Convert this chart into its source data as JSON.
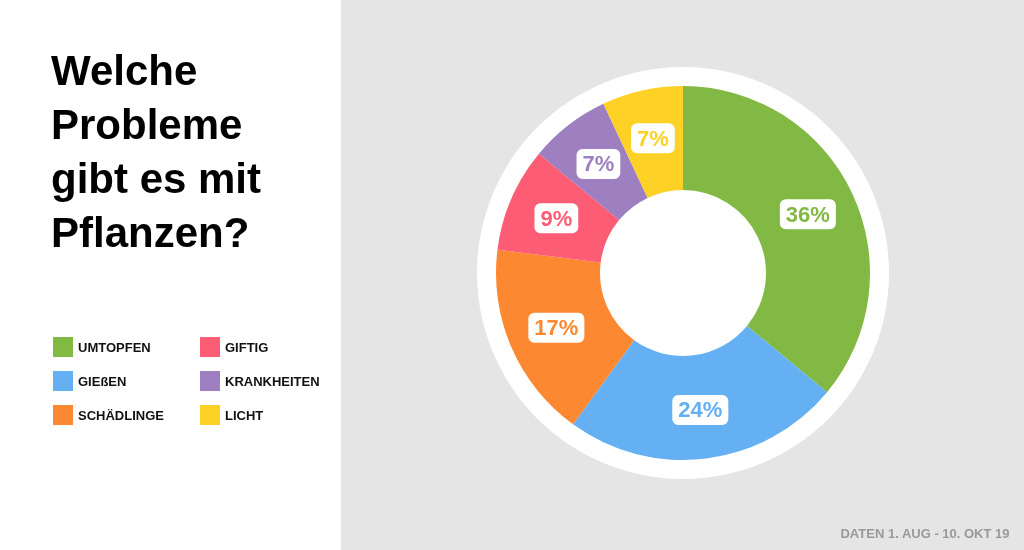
{
  "chart_data": {
    "type": "donut",
    "title": "Welche Probleme gibt es mit Pflanzen?",
    "categories": [
      "UMTOPFEN",
      "GIEßEN",
      "SCHÄDLINGE",
      "GIFTIG",
      "KRANKHEITEN",
      "LICHT"
    ],
    "values": [
      36,
      24,
      17,
      9,
      7,
      7
    ],
    "colors": [
      "#82b944",
      "#64b0f2",
      "#fd8832",
      "#fd5c75",
      "#9e7fbf",
      "#fdd126"
    ],
    "value_labels": [
      "36%",
      "24%",
      "17%",
      "9%",
      "7%",
      "7%"
    ],
    "legend": "left",
    "annotations": [
      "DATEN 1. AUG - 10. OKT 19"
    ]
  }
}
